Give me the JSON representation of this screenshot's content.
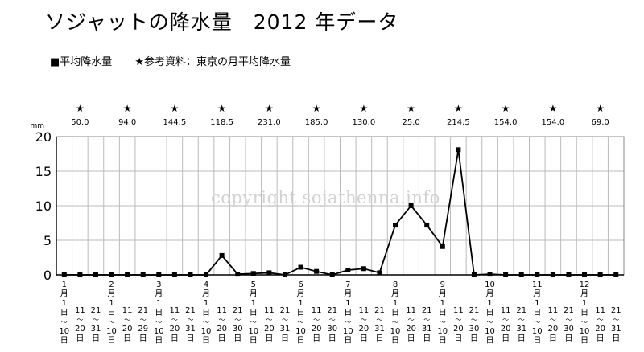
{
  "title": "ソジャットの降水量　2012 年データ",
  "legend": [
    {
      "marker": "■",
      "label": "平均降水量"
    },
    {
      "marker": "★",
      "label": "参考資料：東京の月平均降水量"
    }
  ],
  "watermark": "copyright sojathenna.info",
  "chart_data": {
    "type": "line",
    "title": "ソジャットの降水量　2012 年データ",
    "ylabel": "mm",
    "xlabel": "",
    "ylim": [
      0,
      20
    ],
    "yticks": [
      0,
      5,
      10,
      15,
      20
    ],
    "grid": true,
    "months": [
      "1",
      "2",
      "3",
      "4",
      "5",
      "6",
      "7",
      "8",
      "9",
      "10",
      "11",
      "12"
    ],
    "x": [
      "1月1日〜10日",
      "1月11日〜20日",
      "1月21日〜31日",
      "2月1日〜10日",
      "2月11日〜20日",
      "2月21日〜29日",
      "3月1日〜10日",
      "3月11日〜20日",
      "3月21日〜31日",
      "4月1日〜10日",
      "4月11日〜20日",
      "4月21日〜30日",
      "5月1日〜10日",
      "5月11日〜20日",
      "5月21日〜31日",
      "6月1日〜10日",
      "6月11日〜20日",
      "6月21日〜30日",
      "7月1日〜10日",
      "7月11日〜20日",
      "7月21日〜31日",
      "8月1日〜10日",
      "8月11日〜20日",
      "8月21日〜31日",
      "9月1日〜10日",
      "9月11日〜20日",
      "9月21日〜30日",
      "10月1日〜10日",
      "10月11日〜20日",
      "10月21日〜31日",
      "11月1日〜10日",
      "11月11日〜20日",
      "11月21日〜30日",
      "12月1日〜10日",
      "12月11日〜20日",
      "12月21日〜31日"
    ],
    "series": [
      {
        "name": "平均降水量",
        "values": [
          0,
          0,
          0,
          0,
          0,
          0,
          0,
          0,
          0,
          0,
          2.8,
          0.1,
          0.2,
          0.3,
          0,
          1.1,
          0.5,
          0,
          0.7,
          0.9,
          0.3,
          7.2,
          10.0,
          7.2,
          4.1,
          18.1,
          0,
          0.1,
          0,
          0,
          0,
          0,
          0,
          0,
          0,
          0
        ]
      }
    ],
    "reference": {
      "name": "参考資料：東京の月平均降水量",
      "marker": "★",
      "values": [
        "50.0",
        "94.0",
        "144.5",
        "118.5",
        "231.0",
        "185.0",
        "130.0",
        "25.0",
        "214.5",
        "154.0",
        "154.0",
        "69.0"
      ]
    },
    "colors": {
      "line": "#000000",
      "grid": "#bbbbbb",
      "axis": "#000000",
      "watermark": "#d2d2d2"
    }
  }
}
